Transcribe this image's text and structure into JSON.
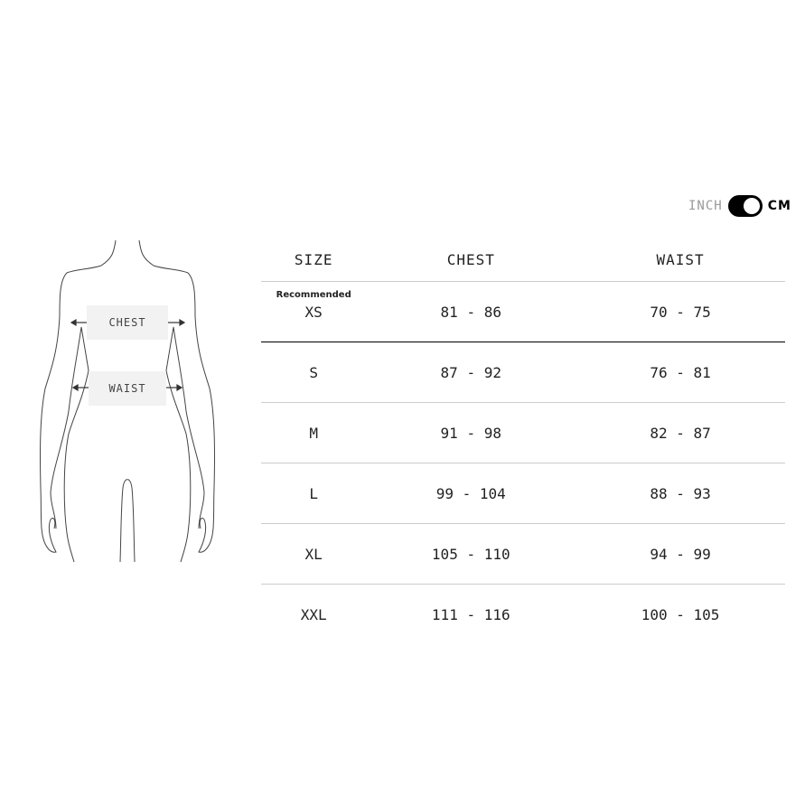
{
  "units": {
    "inactive": "INCH",
    "active": "CM",
    "selected": "CM"
  },
  "figure": {
    "chest_label": "CHEST",
    "waist_label": "WAIST"
  },
  "table": {
    "headers": [
      "SIZE",
      "CHEST",
      "WAIST"
    ],
    "recommended_label": "Recommended",
    "rows": [
      {
        "size": "XS",
        "chest": "81 - 86",
        "waist": "70 - 75",
        "recommended": true
      },
      {
        "size": "S",
        "chest": "87 - 92",
        "waist": "76 - 81"
      },
      {
        "size": "M",
        "chest": "91 - 98",
        "waist": "82 - 87"
      },
      {
        "size": "L",
        "chest": "99 - 104",
        "waist": "88 - 93"
      },
      {
        "size": "XL",
        "chest": "105 - 110",
        "waist": "94 - 99"
      },
      {
        "size": "XXL",
        "chest": "111 - 116",
        "waist": "100 - 105"
      }
    ]
  }
}
